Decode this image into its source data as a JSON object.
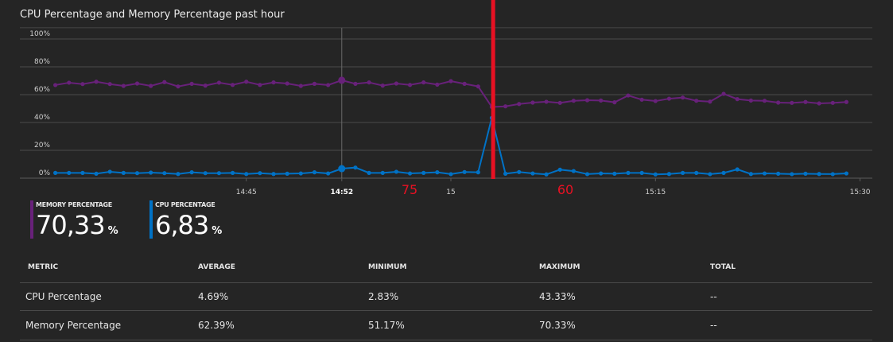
{
  "header": {
    "title": "CPU Percentage and Memory Percentage past hour"
  },
  "chart_data": {
    "type": "line",
    "title": "CPU Percentage and Memory Percentage past hour",
    "x_unit": "minutes after 14:00",
    "x_start": 31,
    "x_step": 1,
    "xlim": [
      28.4,
      90.9
    ],
    "ylim": [
      0,
      100
    ],
    "yticks": [
      {
        "v": 0,
        "label": "0%"
      },
      {
        "v": 20,
        "label": "20%"
      },
      {
        "v": 40,
        "label": "40%"
      },
      {
        "v": 60,
        "label": "60%"
      },
      {
        "v": 80,
        "label": "80%"
      },
      {
        "v": 100,
        "label": "100%"
      }
    ],
    "xticks": [
      {
        "v": 45,
        "label": "14:45"
      },
      {
        "v": 52,
        "label": "14:52",
        "bold": true
      },
      {
        "v": 60,
        "label": "15"
      },
      {
        "v": 75,
        "label": "15:15"
      },
      {
        "v": 90,
        "label": "15:30"
      }
    ],
    "crosshair_x": 52,
    "grid": true,
    "series": [
      {
        "name": "Memory Percentage",
        "color": "#68217a",
        "values": [
          66.9,
          68.6,
          67.6,
          69.3,
          67.6,
          66.3,
          68.0,
          66.3,
          69.0,
          65.9,
          67.8,
          66.5,
          68.6,
          67.0,
          69.3,
          67.0,
          68.8,
          68.0,
          66.3,
          67.8,
          66.9,
          70.33,
          67.8,
          68.8,
          66.5,
          68.0,
          67.0,
          68.8,
          67.2,
          69.7,
          67.8,
          65.9,
          51.17,
          51.6,
          53.3,
          54.3,
          54.9,
          54.1,
          55.6,
          56.0,
          55.8,
          54.5,
          59.4,
          56.4,
          55.4,
          57.1,
          57.9,
          55.6,
          55.0,
          60.6,
          56.8,
          55.8,
          55.6,
          54.3,
          54.1,
          54.7,
          53.7,
          54.1,
          54.7
        ]
      },
      {
        "name": "CPU Percentage",
        "color": "#0072c6",
        "values": [
          3.8,
          3.8,
          3.8,
          3.2,
          4.6,
          3.8,
          3.6,
          4.0,
          3.6,
          3.0,
          4.2,
          3.6,
          3.6,
          3.8,
          3.0,
          3.6,
          3.0,
          3.2,
          3.4,
          4.2,
          3.4,
          6.83,
          7.6,
          3.8,
          3.8,
          4.6,
          3.4,
          3.8,
          4.2,
          2.9,
          4.4,
          4.2,
          43.33,
          3.2,
          4.4,
          3.4,
          2.7,
          6.1,
          5.1,
          2.9,
          3.4,
          3.2,
          3.8,
          3.8,
          2.7,
          3.0,
          3.8,
          3.8,
          2.9,
          3.8,
          6.3,
          3.0,
          3.4,
          3.2,
          2.9,
          3.2,
          3.0,
          2.9,
          3.4
        ]
      }
    ],
    "highlight_index": 21,
    "annotations": {
      "marker_x": 63.1,
      "marker_color": "#e81123",
      "left_label": "75",
      "right_label": "60"
    }
  },
  "summaries": [
    {
      "label": "MEMORY PERCENTAGE",
      "value": "70,33",
      "unit": "%",
      "color": "#68217a"
    },
    {
      "label": "CPU PERCENTAGE",
      "value": "6,83",
      "unit": "%",
      "color": "#0072c6"
    }
  ],
  "table": {
    "headers": [
      "METRIC",
      "AVERAGE",
      "MINIMUM",
      "MAXIMUM",
      "TOTAL"
    ],
    "rows": [
      [
        "CPU Percentage",
        "4.69%",
        "2.83%",
        "43.33%",
        "--"
      ],
      [
        "Memory Percentage",
        "62.39%",
        "51.17%",
        "70.33%",
        "--"
      ]
    ]
  }
}
